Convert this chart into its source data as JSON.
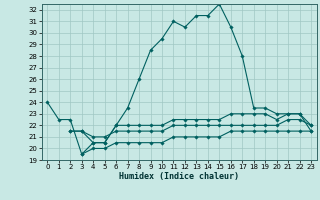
{
  "xlabel": "Humidex (Indice chaleur)",
  "xlim": [
    -0.5,
    23.5
  ],
  "ylim": [
    19,
    32.5
  ],
  "yticks": [
    19,
    20,
    21,
    22,
    23,
    24,
    25,
    26,
    27,
    28,
    29,
    30,
    31,
    32
  ],
  "xticks": [
    0,
    1,
    2,
    3,
    4,
    5,
    6,
    7,
    8,
    9,
    10,
    11,
    12,
    13,
    14,
    15,
    16,
    17,
    18,
    19,
    20,
    21,
    22,
    23
  ],
  "background_color": "#c8e8e4",
  "grid_color": "#a0c8c4",
  "line_color": "#006060",
  "series": [
    {
      "x": [
        0,
        1,
        2,
        3,
        4,
        5,
        6,
        7,
        8,
        9,
        10,
        11,
        12,
        13,
        14,
        15,
        16,
        17,
        18,
        19,
        20,
        21,
        22,
        23
      ],
      "y": [
        24.0,
        22.5,
        22.5,
        19.5,
        20.5,
        20.5,
        22.0,
        23.5,
        26.0,
        28.5,
        29.5,
        31.0,
        30.5,
        31.5,
        31.5,
        32.5,
        30.5,
        28.0,
        23.5,
        23.5,
        23.0,
        23.0,
        23.0,
        21.5
      ]
    },
    {
      "x": [
        2,
        3,
        4,
        5,
        6,
        7,
        8,
        9,
        10,
        11,
        12,
        13,
        14,
        15,
        16,
        17,
        18,
        19,
        20,
        21,
        22,
        23
      ],
      "y": [
        21.5,
        21.5,
        20.5,
        20.5,
        22.0,
        22.0,
        22.0,
        22.0,
        22.0,
        22.5,
        22.5,
        22.5,
        22.5,
        22.5,
        23.0,
        23.0,
        23.0,
        23.0,
        22.5,
        23.0,
        23.0,
        22.0
      ]
    },
    {
      "x": [
        2,
        3,
        4,
        5,
        6,
        7,
        8,
        9,
        10,
        11,
        12,
        13,
        14,
        15,
        16,
        17,
        18,
        19,
        20,
        21,
        22,
        23
      ],
      "y": [
        21.5,
        21.5,
        21.0,
        21.0,
        21.5,
        21.5,
        21.5,
        21.5,
        21.5,
        22.0,
        22.0,
        22.0,
        22.0,
        22.0,
        22.0,
        22.0,
        22.0,
        22.0,
        22.0,
        22.5,
        22.5,
        22.0
      ]
    },
    {
      "x": [
        3,
        4,
        5,
        6,
        7,
        8,
        9,
        10,
        11,
        12,
        13,
        14,
        15,
        16,
        17,
        18,
        19,
        20,
        21,
        22,
        23
      ],
      "y": [
        19.5,
        20.0,
        20.0,
        20.5,
        20.5,
        20.5,
        20.5,
        20.5,
        21.0,
        21.0,
        21.0,
        21.0,
        21.0,
        21.5,
        21.5,
        21.5,
        21.5,
        21.5,
        21.5,
        21.5,
        21.5
      ]
    }
  ]
}
